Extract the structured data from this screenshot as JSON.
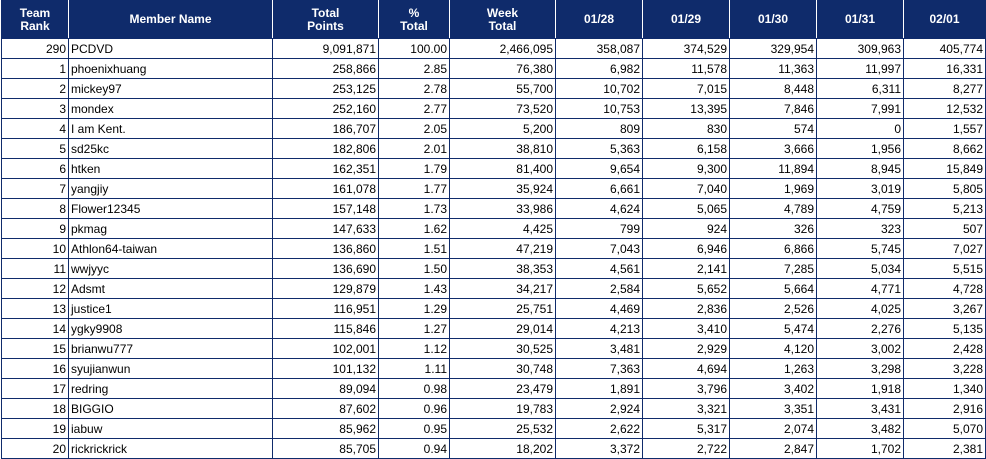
{
  "columns": {
    "rank": [
      "Team",
      "Rank"
    ],
    "name": [
      "Member Name"
    ],
    "total_points": [
      "Total",
      "Points"
    ],
    "pct_total": [
      "%",
      "Total"
    ],
    "week_total": [
      "Week",
      "Total"
    ],
    "d1": [
      "01/28"
    ],
    "d2": [
      "01/29"
    ],
    "d3": [
      "01/30"
    ],
    "d4": [
      "01/31"
    ],
    "d5": [
      "02/01"
    ]
  },
  "rows": [
    {
      "rank": "290",
      "name": "PCDVD",
      "total_points": "9,091,871",
      "pct_total": "100.00",
      "week_total": "2,466,095",
      "d1": "358,087",
      "d2": "374,529",
      "d3": "329,954",
      "d4": "309,963",
      "d5": "405,774"
    },
    {
      "rank": "1",
      "name": "phoenixhuang",
      "total_points": "258,866",
      "pct_total": "2.85",
      "week_total": "76,380",
      "d1": "6,982",
      "d2": "11,578",
      "d3": "11,363",
      "d4": "11,997",
      "d5": "16,331"
    },
    {
      "rank": "2",
      "name": "mickey97",
      "total_points": "253,125",
      "pct_total": "2.78",
      "week_total": "55,700",
      "d1": "10,702",
      "d2": "7,015",
      "d3": "8,448",
      "d4": "6,311",
      "d5": "8,277"
    },
    {
      "rank": "3",
      "name": "mondex",
      "total_points": "252,160",
      "pct_total": "2.77",
      "week_total": "73,520",
      "d1": "10,753",
      "d2": "13,395",
      "d3": "7,846",
      "d4": "7,991",
      "d5": "12,532"
    },
    {
      "rank": "4",
      "name": "I am Kent.",
      "total_points": "186,707",
      "pct_total": "2.05",
      "week_total": "5,200",
      "d1": "809",
      "d2": "830",
      "d3": "574",
      "d4": "0",
      "d5": "1,557"
    },
    {
      "rank": "5",
      "name": "sd25kc",
      "total_points": "182,806",
      "pct_total": "2.01",
      "week_total": "38,810",
      "d1": "5,363",
      "d2": "6,158",
      "d3": "3,666",
      "d4": "1,956",
      "d5": "8,662"
    },
    {
      "rank": "6",
      "name": "htken",
      "total_points": "162,351",
      "pct_total": "1.79",
      "week_total": "81,400",
      "d1": "9,654",
      "d2": "9,300",
      "d3": "11,894",
      "d4": "8,945",
      "d5": "15,849"
    },
    {
      "rank": "7",
      "name": "yangjiy",
      "total_points": "161,078",
      "pct_total": "1.77",
      "week_total": "35,924",
      "d1": "6,661",
      "d2": "7,040",
      "d3": "1,969",
      "d4": "3,019",
      "d5": "5,805"
    },
    {
      "rank": "8",
      "name": "Flower12345",
      "total_points": "157,148",
      "pct_total": "1.73",
      "week_total": "33,986",
      "d1": "4,624",
      "d2": "5,065",
      "d3": "4,789",
      "d4": "4,759",
      "d5": "5,213"
    },
    {
      "rank": "9",
      "name": "pkmag",
      "total_points": "147,633",
      "pct_total": "1.62",
      "week_total": "4,425",
      "d1": "799",
      "d2": "924",
      "d3": "326",
      "d4": "323",
      "d5": "507"
    },
    {
      "rank": "10",
      "name": "Athlon64-taiwan",
      "total_points": "136,860",
      "pct_total": "1.51",
      "week_total": "47,219",
      "d1": "7,043",
      "d2": "6,946",
      "d3": "6,866",
      "d4": "5,745",
      "d5": "7,027"
    },
    {
      "rank": "11",
      "name": "wwjyyc",
      "total_points": "136,690",
      "pct_total": "1.50",
      "week_total": "38,353",
      "d1": "4,561",
      "d2": "2,141",
      "d3": "7,285",
      "d4": "5,034",
      "d5": "5,515"
    },
    {
      "rank": "12",
      "name": "Adsmt",
      "total_points": "129,879",
      "pct_total": "1.43",
      "week_total": "34,217",
      "d1": "2,584",
      "d2": "5,652",
      "d3": "5,664",
      "d4": "4,771",
      "d5": "4,728"
    },
    {
      "rank": "13",
      "name": "justice1",
      "total_points": "116,951",
      "pct_total": "1.29",
      "week_total": "25,751",
      "d1": "4,469",
      "d2": "2,836",
      "d3": "2,526",
      "d4": "4,025",
      "d5": "3,267"
    },
    {
      "rank": "14",
      "name": "ygky9908",
      "total_points": "115,846",
      "pct_total": "1.27",
      "week_total": "29,014",
      "d1": "4,213",
      "d2": "3,410",
      "d3": "5,474",
      "d4": "2,276",
      "d5": "5,135"
    },
    {
      "rank": "15",
      "name": "brianwu777",
      "total_points": "102,001",
      "pct_total": "1.12",
      "week_total": "30,525",
      "d1": "3,481",
      "d2": "2,929",
      "d3": "4,120",
      "d4": "3,002",
      "d5": "2,428"
    },
    {
      "rank": "16",
      "name": "syujianwun",
      "total_points": "101,132",
      "pct_total": "1.11",
      "week_total": "30,748",
      "d1": "7,363",
      "d2": "4,694",
      "d3": "1,263",
      "d4": "3,298",
      "d5": "3,228"
    },
    {
      "rank": "17",
      "name": "redring",
      "total_points": "89,094",
      "pct_total": "0.98",
      "week_total": "23,479",
      "d1": "1,891",
      "d2": "3,796",
      "d3": "3,402",
      "d4": "1,918",
      "d5": "1,340"
    },
    {
      "rank": "18",
      "name": "BIGGIO",
      "total_points": "87,602",
      "pct_total": "0.96",
      "week_total": "19,783",
      "d1": "2,924",
      "d2": "3,321",
      "d3": "3,351",
      "d4": "3,431",
      "d5": "2,916"
    },
    {
      "rank": "19",
      "name": "iabuw",
      "total_points": "85,962",
      "pct_total": "0.95",
      "week_total": "25,532",
      "d1": "2,622",
      "d2": "5,317",
      "d3": "2,074",
      "d4": "3,482",
      "d5": "5,070"
    },
    {
      "rank": "20",
      "name": "rickrickrick",
      "total_points": "85,705",
      "pct_total": "0.94",
      "week_total": "18,202",
      "d1": "3,372",
      "d2": "2,722",
      "d3": "2,847",
      "d4": "1,702",
      "d5": "2,381"
    }
  ]
}
